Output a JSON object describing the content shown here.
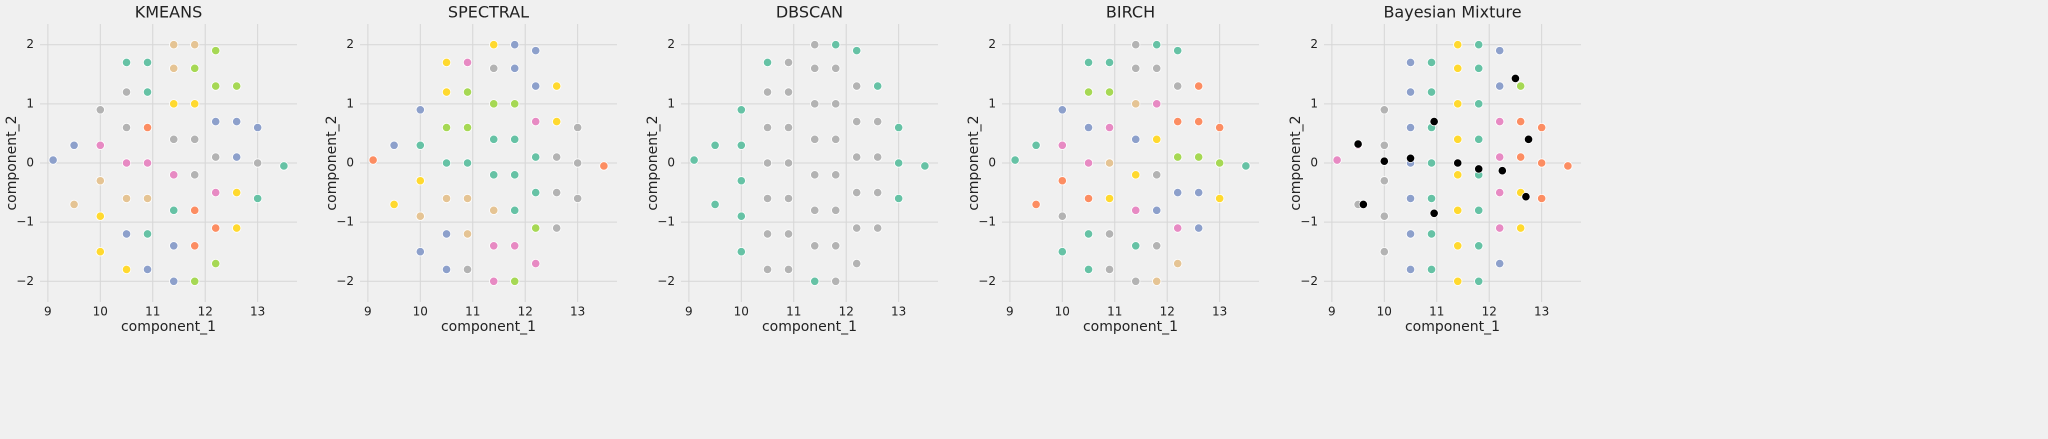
{
  "chart_data": [
    {
      "type": "scatter",
      "title": "KMEANS",
      "xlabel": "component_1",
      "ylabel": "component_2",
      "xlim": [
        8.85,
        13.75
      ],
      "ylim": [
        -2.35,
        2.35
      ],
      "xticks": [
        9,
        10,
        11,
        12,
        13
      ],
      "yticks": [
        {
          "value": -2,
          "label": "−2"
        },
        {
          "value": -1,
          "label": "−1"
        },
        0,
        1,
        2
      ],
      "grid": true,
      "series": [
        {
          "color": "#8da0cb",
          "x": [
            9.1,
            9.5,
            10.5,
            10.9,
            11.4,
            11.4,
            12.2,
            12.6,
            12.6,
            13.0
          ],
          "y": [
            0.05,
            0.3,
            -1.2,
            -1.8,
            -1.4,
            -2,
            0.7,
            0.7,
            0.1,
            0.6
          ]
        },
        {
          "color": "#e5c494",
          "x": [
            9.5,
            10.0,
            10.5,
            10.9,
            11.4,
            11.4,
            11.8
          ],
          "y": [
            -0.7,
            -0.3,
            -0.6,
            -0.6,
            2.0,
            1.6,
            2.0
          ]
        },
        {
          "color": "#ffd92f",
          "x": [
            10.0,
            10.0,
            10.5,
            11.4,
            11.8,
            12.6,
            12.6
          ],
          "y": [
            -1.5,
            -0.9,
            -1.8,
            1.0,
            1.0,
            -0.5,
            -1.1
          ]
        },
        {
          "color": "#e78ac3",
          "x": [
            10.0,
            10.5,
            10.9,
            11.4,
            12.2
          ],
          "y": [
            0.3,
            0,
            0,
            -0.2,
            -0.5
          ]
        },
        {
          "color": "#b3b3b3",
          "x": [
            10.0,
            10.5,
            10.5,
            11.4,
            11.8,
            11.8,
            12.2,
            13.0
          ],
          "y": [
            0.9,
            0.6,
            1.2,
            0.4,
            0.4,
            -0.2,
            0.1,
            0
          ]
        },
        {
          "color": "#66c2a5",
          "x": [
            10.5,
            10.9,
            10.9,
            10.9,
            11.4,
            13.0,
            13.5
          ],
          "y": [
            1.7,
            1.7,
            1.2,
            -1.2,
            -0.8,
            -0.6,
            -0.05
          ]
        },
        {
          "color": "#fc8d62",
          "x": [
            10.9,
            11.8,
            11.8,
            12.2
          ],
          "y": [
            0.6,
            -0.8,
            -1.4,
            -1.1
          ]
        },
        {
          "color": "#a6d854",
          "x": [
            11.8,
            12.2,
            12.2,
            12.2,
            12.6,
            11.8
          ],
          "y": [
            -2,
            -1.7,
            1.3,
            1.9,
            1.3,
            1.6
          ]
        }
      ]
    },
    {
      "type": "scatter",
      "title": "SPECTRAL",
      "xlabel": "component_1",
      "ylabel": "component_2",
      "xlim": [
        8.85,
        13.75
      ],
      "ylim": [
        -2.35,
        2.35
      ],
      "xticks": [
        9,
        10,
        11,
        12,
        13
      ],
      "yticks": [
        {
          "value": -2,
          "label": "−2"
        },
        {
          "value": -1,
          "label": "−1"
        },
        0,
        1,
        2
      ],
      "grid": true,
      "series": [
        {
          "color": "#fc8d62",
          "x": [
            9.1,
            13.5
          ],
          "y": [
            0.05,
            -0.05
          ]
        },
        {
          "color": "#8da0cb",
          "x": [
            9.5,
            10.0,
            10.0,
            10.5,
            10.5,
            11.8,
            11.8,
            12.2,
            12.2
          ],
          "y": [
            0.3,
            0.9,
            -1.5,
            -1.8,
            -1.2,
            1.6,
            2.0,
            1.3,
            1.9
          ]
        },
        {
          "color": "#ffd92f",
          "x": [
            9.5,
            10.0,
            10.5,
            10.5,
            11.4,
            12.6,
            12.6
          ],
          "y": [
            -0.7,
            -0.3,
            1.2,
            1.7,
            2.0,
            0.7,
            1.3
          ]
        },
        {
          "color": "#e5c494",
          "x": [
            10.0,
            10.5,
            10.9,
            10.9,
            11.4
          ],
          "y": [
            -0.9,
            -0.6,
            -0.6,
            -1.2,
            -0.8
          ]
        },
        {
          "color": "#a6d854",
          "x": [
            10.5,
            10.9,
            10.9,
            11.4,
            11.8,
            11.8,
            12.2
          ],
          "y": [
            0.6,
            0.6,
            1.2,
            1.0,
            1.0,
            -2,
            -1.1
          ]
        },
        {
          "color": "#66c2a5",
          "x": [
            10.0,
            10.5,
            10.9,
            11.4,
            11.4,
            11.8,
            11.8,
            11.8,
            12.2,
            12.2
          ],
          "y": [
            0.3,
            0,
            0,
            0.4,
            -0.2,
            0.4,
            -0.2,
            -0.8,
            0.1,
            -0.5
          ]
        },
        {
          "color": "#e78ac3",
          "x": [
            10.9,
            11.4,
            11.4,
            11.8,
            12.2,
            12.2
          ],
          "y": [
            1.7,
            -1.4,
            -2,
            -1.4,
            -1.7,
            0.7
          ]
        },
        {
          "color": "#b3b3b3",
          "x": [
            10.9,
            11.4,
            12.6,
            12.6,
            12.6,
            13.0,
            13.0,
            13.0
          ],
          "y": [
            -1.8,
            1.6,
            0.1,
            -0.5,
            -1.1,
            -0.6,
            0,
            0.6
          ]
        }
      ]
    },
    {
      "type": "scatter",
      "title": "DBSCAN",
      "xlabel": "component_1",
      "ylabel": "component_2",
      "xlim": [
        8.85,
        13.75
      ],
      "ylim": [
        -2.35,
        2.35
      ],
      "xticks": [
        9,
        10,
        11,
        12,
        13
      ],
      "yticks": [
        {
          "value": -2,
          "label": "−2"
        },
        {
          "value": -1,
          "label": "−1"
        },
        0,
        1,
        2
      ],
      "grid": true,
      "series": [
        {
          "color": "#66c2a5",
          "x": [
            9.1,
            9.5,
            9.5,
            10.0,
            10.0,
            10.0,
            10.0,
            10.0,
            10.5,
            11.4,
            11.8,
            12.2,
            12.6,
            13.0,
            13.0,
            13.0,
            13.5
          ],
          "y": [
            0.05,
            -0.7,
            0.3,
            -1.5,
            -0.9,
            -0.3,
            0.3,
            0.9,
            1.7,
            -2,
            2.0,
            1.9,
            1.3,
            -0.6,
            0,
            0.6,
            -0.05
          ]
        },
        {
          "color": "#b3b3b3",
          "x": [
            10.5,
            10.5,
            10.5,
            10.5,
            10.5,
            10.5,
            10.9,
            10.9,
            10.9,
            10.9,
            10.9,
            10.9,
            10.9,
            11.4,
            11.4,
            11.4,
            11.4,
            11.4,
            11.4,
            11.4,
            11.8,
            11.8,
            11.8,
            11.8,
            11.8,
            11.8,
            11.8,
            12.2,
            12.2,
            12.2,
            12.2,
            12.2,
            12.2,
            12.6,
            12.6,
            12.6,
            12.6
          ],
          "y": [
            -1.8,
            -1.2,
            -0.6,
            0,
            0.6,
            1.2,
            -1.8,
            -1.2,
            -0.6,
            0,
            0.6,
            1.2,
            1.7,
            -1.4,
            -0.8,
            -0.2,
            0.4,
            1.0,
            1.6,
            2.0,
            -2,
            -1.4,
            -0.8,
            -0.2,
            0.4,
            1.0,
            1.6,
            -1.7,
            -1.1,
            -0.5,
            0.1,
            0.7,
            1.3,
            -1.1,
            -0.5,
            0.1,
            0.7
          ]
        }
      ]
    },
    {
      "type": "scatter",
      "title": "BIRCH",
      "xlabel": "component_1",
      "ylabel": "component_2",
      "xlim": [
        8.85,
        13.75
      ],
      "ylim": [
        -2.35,
        2.35
      ],
      "xticks": [
        9,
        10,
        11,
        12,
        13
      ],
      "yticks": [
        {
          "value": -2,
          "label": "−2"
        },
        {
          "value": -1,
          "label": "−1"
        },
        0,
        1,
        2
      ],
      "grid": true,
      "series": [
        {
          "color": "#66c2a5",
          "x": [
            9.1,
            9.5,
            10.5,
            10.5,
            10.9,
            11.4,
            11.8,
            12.2,
            10.0,
            10.5,
            13.5
          ],
          "y": [
            0.05,
            0.3,
            -1.8,
            -1.2,
            1.7,
            -1.4,
            2.0,
            1.9,
            -1.5,
            1.7,
            -0.05
          ]
        },
        {
          "color": "#fc8d62",
          "x": [
            9.5,
            10.0,
            10.5,
            12.6,
            12.6,
            13.0,
            12.2
          ],
          "y": [
            -0.7,
            -0.3,
            -0.6,
            0.7,
            1.3,
            0.6,
            0.7
          ]
        },
        {
          "color": "#8da0cb",
          "x": [
            10.0,
            10.5,
            11.4,
            11.8,
            12.2,
            12.6,
            12.6
          ],
          "y": [
            0.9,
            0.6,
            0.4,
            -0.8,
            -0.5,
            -0.5,
            -1.1
          ]
        },
        {
          "color": "#a6d854",
          "x": [
            10.5,
            10.9,
            12.2,
            12.6,
            13.0
          ],
          "y": [
            1.2,
            1.2,
            0.1,
            0.1,
            0
          ]
        },
        {
          "color": "#e78ac3",
          "x": [
            10.5,
            10.9,
            11.4,
            11.8,
            12.2,
            10.0
          ],
          "y": [
            0,
            0.6,
            -0.8,
            1.0,
            -1.1,
            0.3
          ]
        },
        {
          "color": "#e5c494",
          "x": [
            10.9,
            11.4,
            12.2,
            11.8
          ],
          "y": [
            0,
            1.0,
            -1.7,
            -2
          ]
        },
        {
          "color": "#ffd92f",
          "x": [
            10.9,
            11.4,
            11.8,
            13.0
          ],
          "y": [
            -0.6,
            -0.2,
            0.4,
            -0.6
          ]
        },
        {
          "color": "#b3b3b3",
          "x": [
            10.9,
            10.9,
            11.4,
            11.4,
            11.8,
            11.8,
            11.8,
            12.2,
            10.0,
            11.4
          ],
          "y": [
            -1.2,
            -1.8,
            1.6,
            2.0,
            1.6,
            -0.2,
            -1.4,
            1.3,
            -0.9,
            -2
          ]
        }
      ]
    },
    {
      "type": "scatter",
      "title": "Bayesian Mixture",
      "xlabel": "component_1",
      "ylabel": "component_2",
      "xlim": [
        8.85,
        13.75
      ],
      "ylim": [
        -2.35,
        2.35
      ],
      "xticks": [
        9,
        10,
        11,
        12,
        13
      ],
      "yticks": [
        {
          "value": -2,
          "label": "−2"
        },
        {
          "value": -1,
          "label": "−1"
        },
        0,
        1,
        2
      ],
      "grid": true,
      "series": [
        {
          "color": "#e78ac3",
          "x": [
            9.1,
            9.5
          ],
          "y": [
            0.05,
            0.3
          ]
        },
        {
          "color": "#b3b3b3",
          "x": [
            9.5,
            10.0,
            10.0,
            10.0,
            10.0,
            10.0
          ],
          "y": [
            -0.7,
            -1.5,
            -0.9,
            -0.3,
            0.3,
            0.9
          ]
        },
        {
          "color": "#8da0cb",
          "x": [
            10.5,
            10.5,
            10.5,
            10.5,
            10.5,
            10.5,
            10.5,
            12.2,
            12.2,
            12.2
          ],
          "y": [
            -1.8,
            -1.2,
            -0.6,
            0,
            0.6,
            1.2,
            1.7,
            -1.7,
            1.3,
            1.9
          ]
        },
        {
          "color": "#66c2a5",
          "x": [
            10.9,
            10.9,
            10.9,
            10.9,
            10.9,
            10.9,
            10.9,
            11.8,
            11.8,
            11.8,
            11.8,
            11.8,
            11.8,
            11.8,
            11.8
          ],
          "y": [
            -1.8,
            -1.2,
            -0.6,
            0,
            0.6,
            1.2,
            1.7,
            -2,
            -1.4,
            -0.8,
            -0.2,
            0.4,
            1.0,
            1.6,
            2.0
          ]
        },
        {
          "color": "#ffd92f",
          "x": [
            11.4,
            11.4,
            11.4,
            11.4,
            11.4,
            11.4,
            11.4,
            11.4,
            12.6,
            12.6
          ],
          "y": [
            -2,
            -1.4,
            -0.8,
            -0.2,
            0.4,
            1.0,
            1.6,
            2.0,
            -1.1,
            -0.5
          ]
        },
        {
          "color": "#e78ac3",
          "x": [
            12.2,
            12.2,
            12.2,
            12.2
          ],
          "y": [
            -1.1,
            -0.5,
            0.1,
            0.7
          ]
        },
        {
          "color": "#a6d854",
          "x": [
            12.6
          ],
          "y": [
            1.3
          ]
        },
        {
          "color": "#fc8d62",
          "x": [
            12.6,
            12.6,
            13.0,
            13.0,
            13.0,
            13.5
          ],
          "y": [
            0.7,
            0.1,
            -0.6,
            0,
            0.6,
            -0.05
          ]
        },
        {
          "color": "#000000",
          "x": [
            9.5,
            9.6,
            10.0,
            10.5,
            10.95,
            10.95,
            11.4,
            11.8,
            12.25,
            12.5,
            12.75,
            12.7
          ],
          "y": [
            0.32,
            -0.7,
            0.03,
            0.08,
            0.7,
            -0.85,
            0.0,
            -0.1,
            -0.13,
            1.43,
            0.4,
            -0.57
          ]
        }
      ]
    }
  ]
}
